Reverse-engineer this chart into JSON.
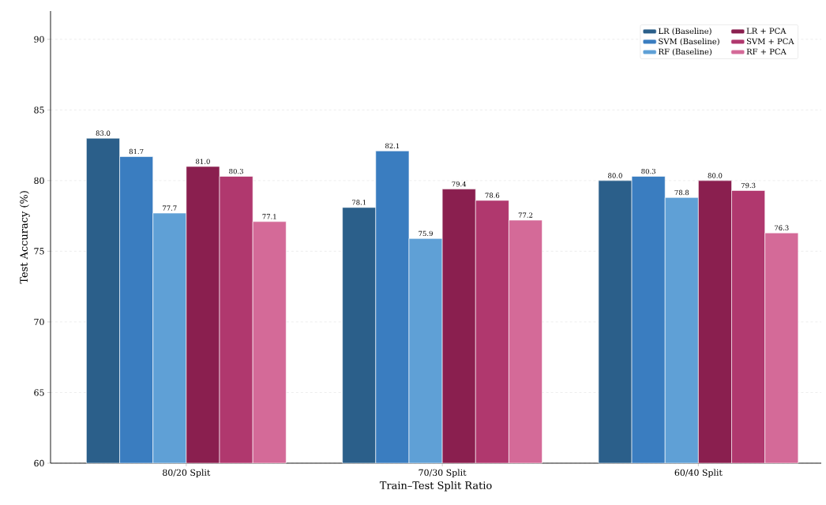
{
  "chart_data": {
    "type": "bar",
    "xlabel": "Train–Test Split Ratio",
    "ylabel": "Test Accuracy (%)",
    "categories": [
      "80/20 Split",
      "70/30 Split",
      "60/40 Split"
    ],
    "series": [
      {
        "name": "LR (Baseline)",
        "color": "#2b5f8a",
        "values": [
          83.0,
          78.1,
          80.0
        ],
        "value_labels": [
          "83.0",
          "78.1",
          "80.0"
        ]
      },
      {
        "name": "SVM (Baseline)",
        "color": "#3a7dc0",
        "values": [
          81.7,
          82.1,
          80.3
        ],
        "value_labels": [
          "81.7",
          "82.1",
          "80.3"
        ]
      },
      {
        "name": "RF (Baseline)",
        "color": "#5fa0d6",
        "values": [
          77.7,
          75.9,
          78.8
        ],
        "value_labels": [
          "77.7",
          "75.9",
          "78.8"
        ]
      },
      {
        "name": "LR + PCA",
        "color": "#8a1f4f",
        "values": [
          81.0,
          79.4,
          80.0
        ],
        "value_labels": [
          "81.0",
          "79.4",
          "80.0"
        ]
      },
      {
        "name": "SVM + PCA",
        "color": "#b0386e",
        "values": [
          80.3,
          78.6,
          79.3
        ],
        "value_labels": [
          "80.3",
          "78.6",
          "79.3"
        ]
      },
      {
        "name": "RF + PCA",
        "color": "#d46a98",
        "values": [
          77.1,
          77.2,
          76.3
        ],
        "value_labels": [
          "77.1",
          "77.2",
          "76.3"
        ]
      }
    ],
    "ylim": [
      60,
      92
    ],
    "yticks": [
      60,
      65,
      70,
      75,
      80,
      85,
      90
    ],
    "grid": "y",
    "legend": "top right"
  }
}
